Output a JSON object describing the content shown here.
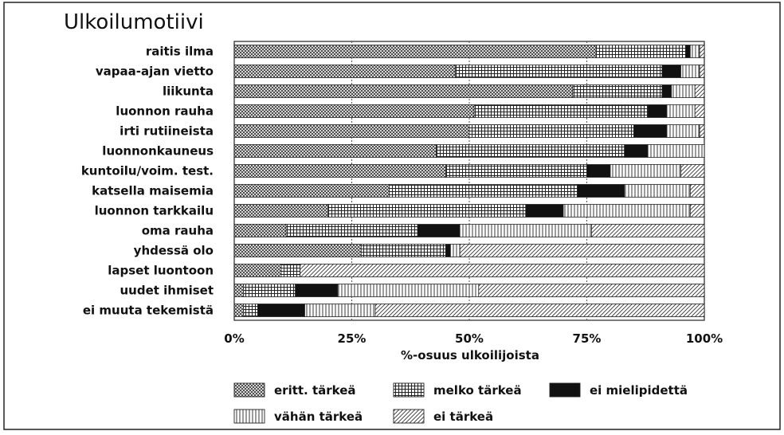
{
  "chart_data": {
    "type": "bar",
    "stacked": true,
    "orientation": "horizontal",
    "title": "Ulkoilumotiivi",
    "xlabel": "%-osuus ulkoilijoista",
    "ylabel": "",
    "xlim": [
      0,
      100
    ],
    "x_ticks": [
      "0%",
      "25%",
      "50%",
      "75%",
      "100%"
    ],
    "grid": true,
    "legend_position": "bottom",
    "categories": [
      "raitis ilma",
      "vapaa-ajan vietto",
      "liikunta",
      "luonnon rauha",
      "irti rutiineista",
      "luonnonkauneus",
      "kuntoilu/voim. test.",
      "katsella maisemia",
      "luonnon tarkkailu",
      "oma rauha",
      "yhdessä olo",
      "lapset luontoon",
      "uudet ihmiset",
      "ei muuta tekemistä"
    ],
    "series": [
      {
        "name": "eritt. tärkeä",
        "pattern": "crosshatch-dense",
        "values": [
          77,
          47,
          72,
          51,
          50,
          43,
          45,
          33,
          20,
          11,
          27,
          10,
          2,
          2
        ]
      },
      {
        "name": "melko tärkeä",
        "pattern": "grid",
        "values": [
          19,
          44,
          19,
          37,
          35,
          40,
          30,
          40,
          42,
          28,
          18,
          4,
          11,
          3
        ]
      },
      {
        "name": "ei mielipidettä",
        "pattern": "solid",
        "values": [
          1,
          4,
          2,
          4,
          7,
          5,
          5,
          10,
          8,
          9,
          1,
          0,
          9,
          10
        ]
      },
      {
        "name": "vähän tärkeä",
        "pattern": "vertical-lines",
        "values": [
          2,
          4,
          5,
          6,
          7,
          12,
          15,
          14,
          27,
          28,
          2,
          0,
          30,
          15
        ]
      },
      {
        "name": "ei tärkeä",
        "pattern": "diagonal",
        "values": [
          1,
          1,
          2,
          2,
          1,
          0,
          5,
          3,
          3,
          24,
          52,
          86,
          48,
          70
        ]
      }
    ]
  }
}
